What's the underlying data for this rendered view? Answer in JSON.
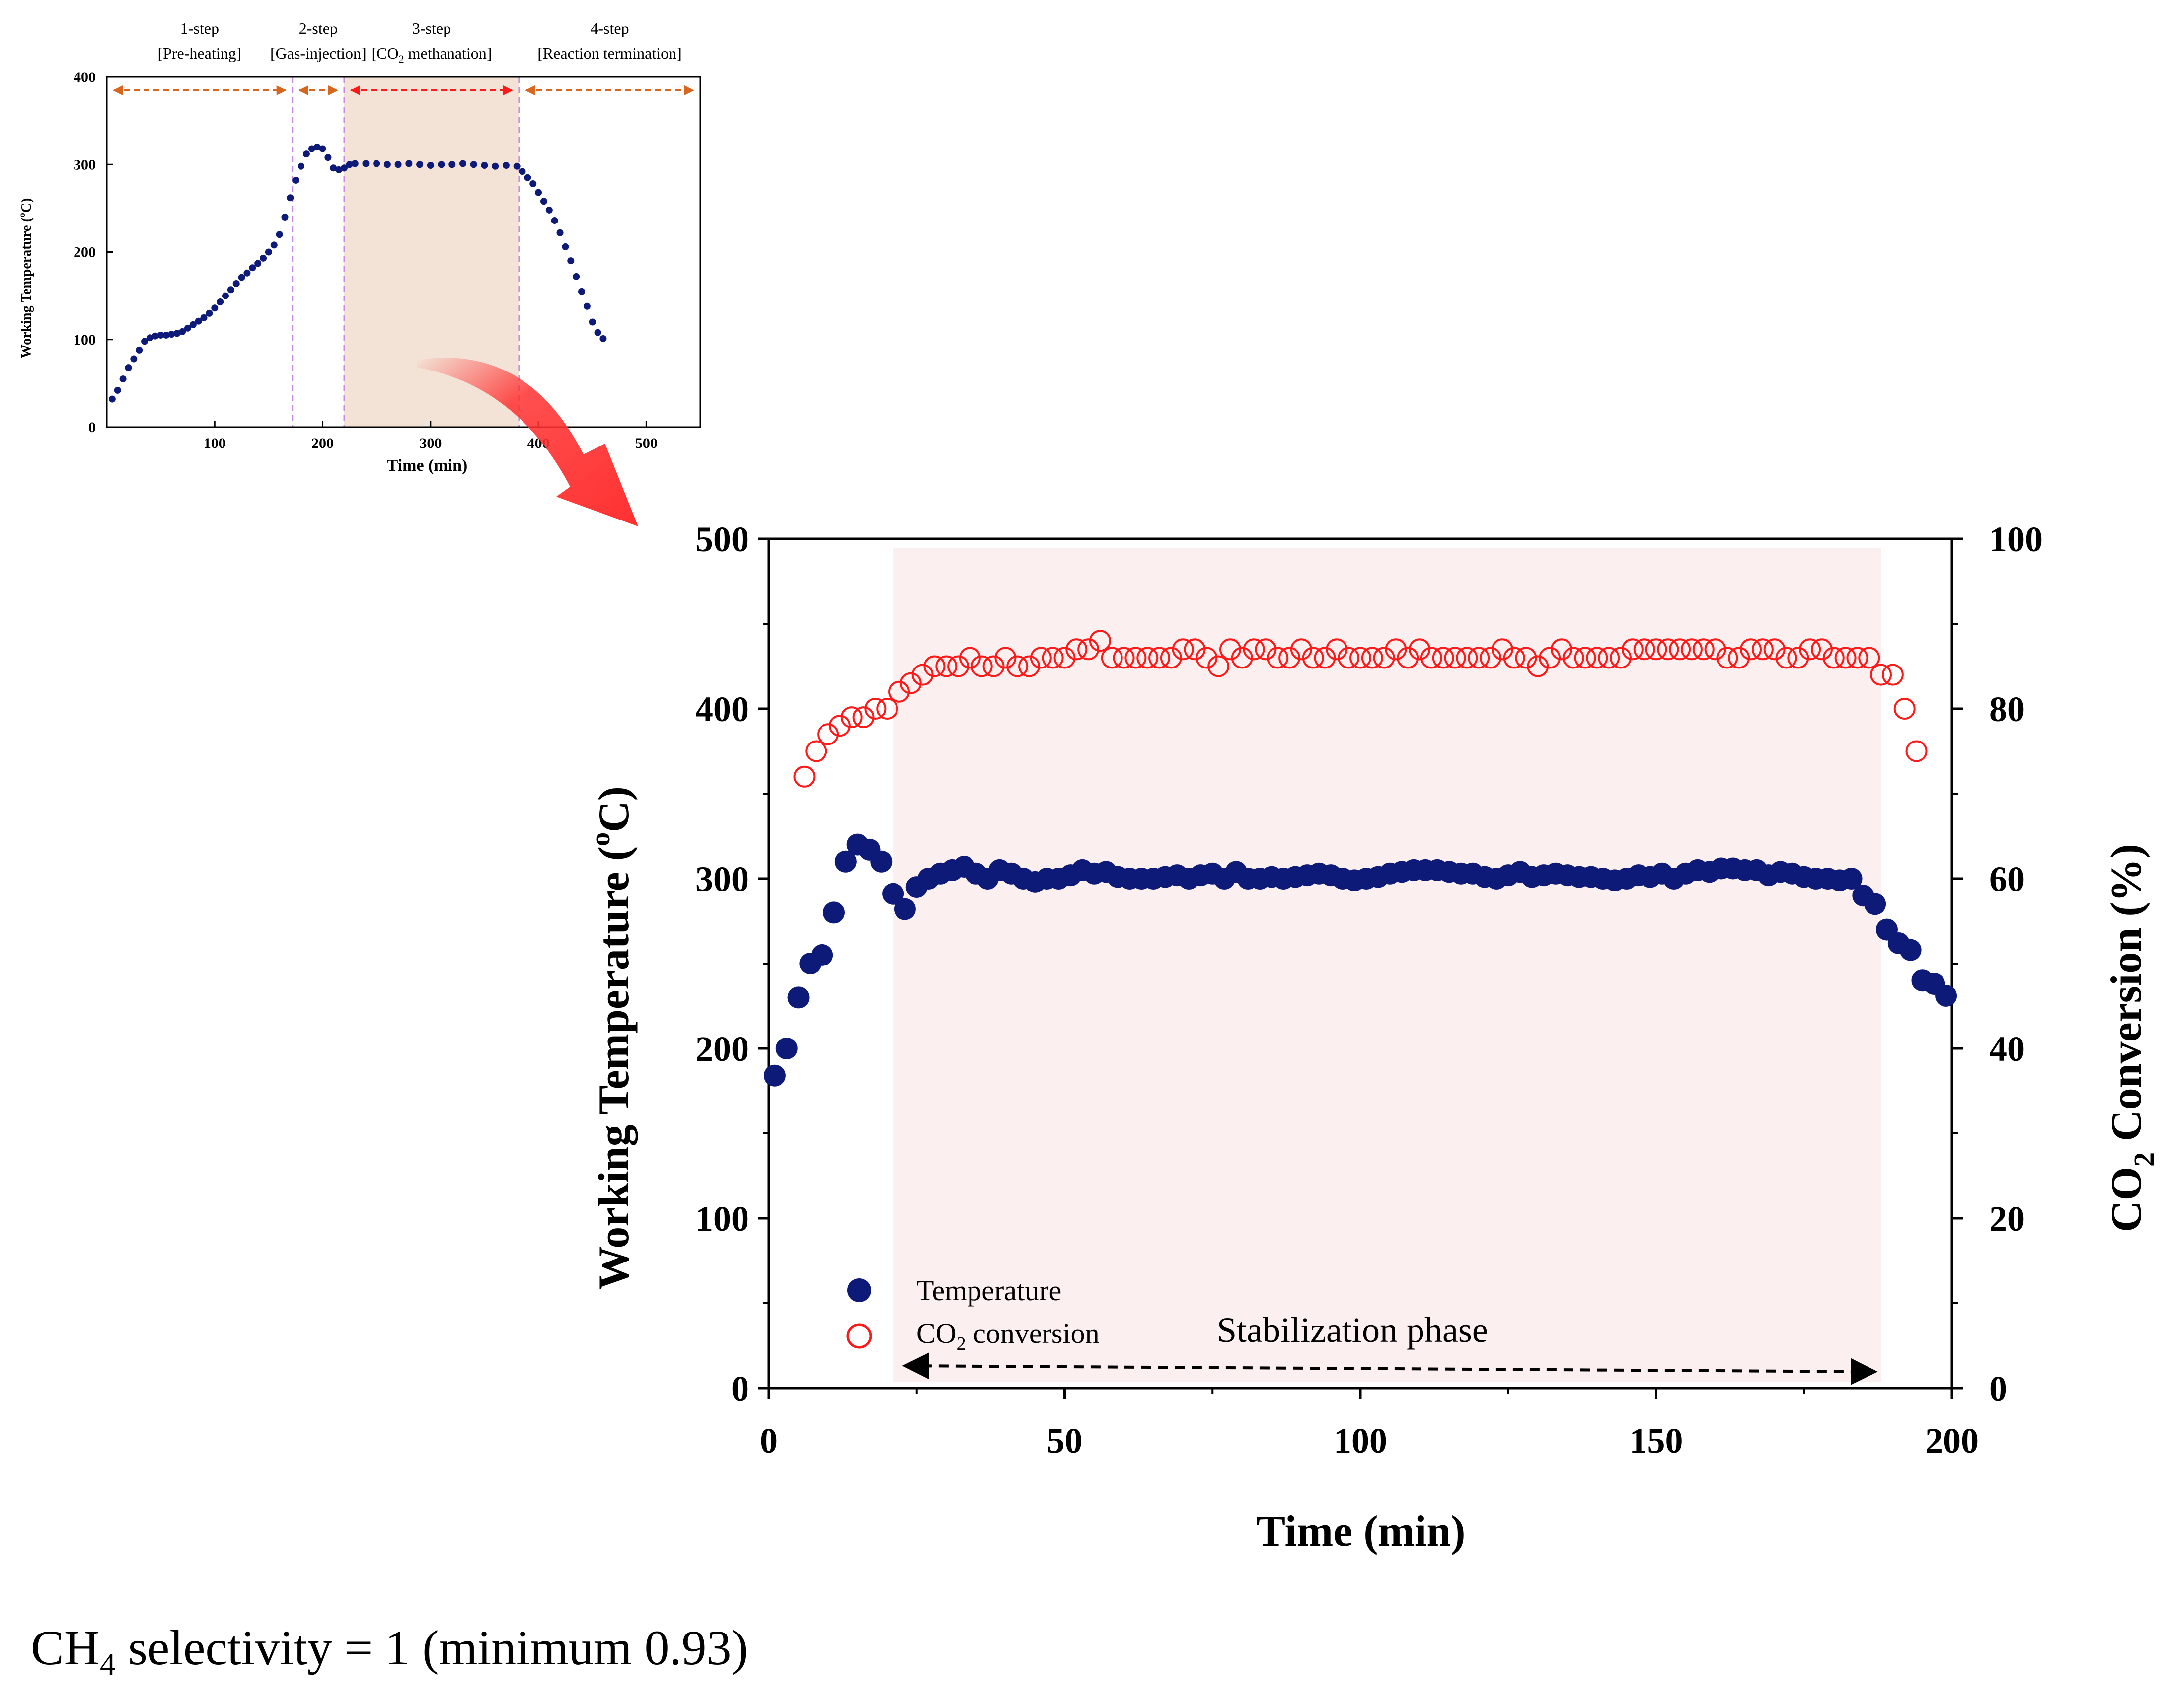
{
  "inset_chart": {
    "type": "scatter",
    "title": "",
    "xlabel": "Time (min)",
    "ylabel_main": "Working Temperature (",
    "ylabel_sup": "o",
    "ylabel_end": "C)",
    "xlim": [
      0,
      550
    ],
    "ylim": [
      0,
      400
    ],
    "x_ticks": [
      "100",
      "200",
      "300",
      "400",
      "500"
    ],
    "y_ticks": [
      "0",
      "100",
      "200",
      "300",
      "400"
    ],
    "steps": [
      {
        "name": "1-step",
        "label": "[Pre-heating]",
        "from": 0,
        "to": 172
      },
      {
        "name": "2-step",
        "label": "[Gas-injection]",
        "from": 172,
        "to": 220
      },
      {
        "name": "3-step",
        "label_pre": "[CO",
        "label_sub": "2",
        "label_post": " methanation]",
        "from": 220,
        "to": 382
      },
      {
        "name": "4-step",
        "label": "[Reaction termination]",
        "from": 382,
        "to": 550
      }
    ],
    "series": [
      {
        "marker": "filled-circle",
        "color": "#0d1a78",
        "points": [
          [
            5,
            32
          ],
          [
            10,
            42
          ],
          [
            15,
            55
          ],
          [
            20,
            68
          ],
          [
            25,
            78
          ],
          [
            30,
            88
          ],
          [
            35,
            98
          ],
          [
            40,
            102
          ],
          [
            45,
            104
          ],
          [
            50,
            105
          ],
          [
            55,
            105
          ],
          [
            60,
            106
          ],
          [
            65,
            107
          ],
          [
            70,
            109
          ],
          [
            75,
            113
          ],
          [
            80,
            117
          ],
          [
            85,
            121
          ],
          [
            90,
            125
          ],
          [
            95,
            130
          ],
          [
            100,
            136
          ],
          [
            105,
            143
          ],
          [
            110,
            150
          ],
          [
            115,
            157
          ],
          [
            120,
            164
          ],
          [
            125,
            171
          ],
          [
            130,
            176
          ],
          [
            135,
            182
          ],
          [
            140,
            187
          ],
          [
            145,
            193
          ],
          [
            150,
            200
          ],
          [
            155,
            208
          ],
          [
            160,
            220
          ],
          [
            165,
            240
          ],
          [
            170,
            262
          ],
          [
            175,
            282
          ],
          [
            180,
            298
          ],
          [
            185,
            312
          ],
          [
            190,
            318
          ],
          [
            195,
            320
          ],
          [
            200,
            318
          ],
          [
            205,
            308
          ],
          [
            210,
            296
          ],
          [
            215,
            294
          ],
          [
            220,
            296
          ],
          [
            225,
            300
          ],
          [
            230,
            301
          ],
          [
            240,
            301
          ],
          [
            250,
            301
          ],
          [
            260,
            300
          ],
          [
            270,
            300
          ],
          [
            280,
            301
          ],
          [
            290,
            300
          ],
          [
            300,
            299
          ],
          [
            310,
            300
          ],
          [
            320,
            300
          ],
          [
            330,
            301
          ],
          [
            340,
            300
          ],
          [
            350,
            299
          ],
          [
            360,
            298
          ],
          [
            370,
            299
          ],
          [
            380,
            298
          ],
          [
            385,
            292
          ],
          [
            390,
            285
          ],
          [
            395,
            278
          ],
          [
            400,
            268
          ],
          [
            405,
            258
          ],
          [
            410,
            248
          ],
          [
            415,
            236
          ],
          [
            420,
            222
          ],
          [
            425,
            206
          ],
          [
            430,
            190
          ],
          [
            435,
            172
          ],
          [
            440,
            155
          ],
          [
            445,
            138
          ],
          [
            450,
            120
          ],
          [
            455,
            108
          ],
          [
            460,
            101
          ]
        ]
      }
    ]
  },
  "chart_data": {
    "type": "scatter",
    "title": "",
    "xlabel": "Time (min)",
    "ylabel_left_main": "Working Temperature (",
    "ylabel_left_sup": "o",
    "ylabel_left_end": "C)",
    "ylabel_right_pre": "CO",
    "ylabel_right_sub": "2",
    "ylabel_right_post": " Conversion (%)",
    "xlim": [
      0,
      200
    ],
    "ylim_left": [
      0,
      500
    ],
    "ylim_right": [
      0,
      100
    ],
    "x_ticks": [
      "0",
      "50",
      "100",
      "150",
      "200"
    ],
    "y_ticks_left": [
      "0",
      "100",
      "200",
      "300",
      "400",
      "500"
    ],
    "y_ticks_right": [
      "0",
      "20",
      "40",
      "60",
      "80",
      "100"
    ],
    "shaded_region": [
      21,
      188
    ],
    "annotation": "Stabilization phase",
    "annotation_arrow": [
      23,
      187
    ],
    "legend_position": "bottom-left",
    "series": [
      {
        "name": "Temperature",
        "axis": "left",
        "marker": "filled-circle",
        "color": "#0d1a78",
        "points": [
          [
            1,
            184
          ],
          [
            3,
            200
          ],
          [
            5,
            230
          ],
          [
            7,
            250
          ],
          [
            9,
            255
          ],
          [
            11,
            280
          ],
          [
            13,
            310
          ],
          [
            15,
            320
          ],
          [
            17,
            317
          ],
          [
            19,
            310
          ],
          [
            21,
            291
          ],
          [
            23,
            282
          ],
          [
            25,
            295
          ],
          [
            27,
            300
          ],
          [
            29,
            303
          ],
          [
            31,
            305
          ],
          [
            33,
            307
          ],
          [
            35,
            303
          ],
          [
            37,
            300
          ],
          [
            39,
            305
          ],
          [
            41,
            303
          ],
          [
            43,
            300
          ],
          [
            45,
            298
          ],
          [
            47,
            300
          ],
          [
            49,
            300
          ],
          [
            51,
            302
          ],
          [
            53,
            305
          ],
          [
            55,
            303
          ],
          [
            57,
            304
          ],
          [
            59,
            301
          ],
          [
            61,
            300
          ],
          [
            63,
            300
          ],
          [
            65,
            300
          ],
          [
            67,
            301
          ],
          [
            69,
            302
          ],
          [
            71,
            300
          ],
          [
            73,
            302
          ],
          [
            75,
            303
          ],
          [
            77,
            300
          ],
          [
            79,
            304
          ],
          [
            81,
            300
          ],
          [
            83,
            300
          ],
          [
            85,
            301
          ],
          [
            87,
            300
          ],
          [
            89,
            301
          ],
          [
            91,
            302
          ],
          [
            93,
            303
          ],
          [
            95,
            302
          ],
          [
            97,
            300
          ],
          [
            99,
            299
          ],
          [
            101,
            300
          ],
          [
            103,
            301
          ],
          [
            105,
            303
          ],
          [
            107,
            304
          ],
          [
            109,
            305
          ],
          [
            111,
            305
          ],
          [
            113,
            305
          ],
          [
            115,
            304
          ],
          [
            117,
            303
          ],
          [
            119,
            303
          ],
          [
            121,
            301
          ],
          [
            123,
            300
          ],
          [
            125,
            302
          ],
          [
            127,
            304
          ],
          [
            129,
            301
          ],
          [
            131,
            302
          ],
          [
            133,
            303
          ],
          [
            135,
            302
          ],
          [
            137,
            301
          ],
          [
            139,
            301
          ],
          [
            141,
            300
          ],
          [
            143,
            299
          ],
          [
            145,
            300
          ],
          [
            147,
            302
          ],
          [
            149,
            301
          ],
          [
            151,
            303
          ],
          [
            153,
            300
          ],
          [
            155,
            303
          ],
          [
            157,
            305
          ],
          [
            159,
            304
          ],
          [
            161,
            306
          ],
          [
            163,
            306
          ],
          [
            165,
            305
          ],
          [
            167,
            305
          ],
          [
            169,
            302
          ],
          [
            171,
            304
          ],
          [
            173,
            303
          ],
          [
            175,
            301
          ],
          [
            177,
            300
          ],
          [
            179,
            300
          ],
          [
            181,
            299
          ],
          [
            183,
            300
          ],
          [
            185,
            290
          ],
          [
            187,
            285
          ],
          [
            189,
            270
          ],
          [
            191,
            262
          ],
          [
            193,
            258
          ],
          [
            195,
            240
          ],
          [
            197,
            238
          ],
          [
            199,
            231
          ]
        ]
      },
      {
        "name_pre": "CO",
        "name_sub": "2",
        "name_post": " conversion",
        "axis": "right",
        "marker": "open-circle",
        "color": "#ff1a1a",
        "points": [
          [
            6,
            72
          ],
          [
            8,
            75
          ],
          [
            10,
            77
          ],
          [
            12,
            78
          ],
          [
            14,
            79
          ],
          [
            16,
            79
          ],
          [
            18,
            80
          ],
          [
            20,
            80
          ],
          [
            22,
            82
          ],
          [
            24,
            83
          ],
          [
            26,
            84
          ],
          [
            28,
            85
          ],
          [
            30,
            85
          ],
          [
            32,
            85
          ],
          [
            34,
            86
          ],
          [
            36,
            85
          ],
          [
            38,
            85
          ],
          [
            40,
            86
          ],
          [
            42,
            85
          ],
          [
            44,
            85
          ],
          [
            46,
            86
          ],
          [
            48,
            86
          ],
          [
            50,
            86
          ],
          [
            52,
            87
          ],
          [
            54,
            87
          ],
          [
            56,
            88
          ],
          [
            58,
            86
          ],
          [
            60,
            86
          ],
          [
            62,
            86
          ],
          [
            64,
            86
          ],
          [
            66,
            86
          ],
          [
            68,
            86
          ],
          [
            70,
            87
          ],
          [
            72,
            87
          ],
          [
            74,
            86
          ],
          [
            76,
            85
          ],
          [
            78,
            87
          ],
          [
            80,
            86
          ],
          [
            82,
            87
          ],
          [
            84,
            87
          ],
          [
            86,
            86
          ],
          [
            88,
            86
          ],
          [
            90,
            87
          ],
          [
            92,
            86
          ],
          [
            94,
            86
          ],
          [
            96,
            87
          ],
          [
            98,
            86
          ],
          [
            100,
            86
          ],
          [
            102,
            86
          ],
          [
            104,
            86
          ],
          [
            106,
            87
          ],
          [
            108,
            86
          ],
          [
            110,
            87
          ],
          [
            112,
            86
          ],
          [
            114,
            86
          ],
          [
            116,
            86
          ],
          [
            118,
            86
          ],
          [
            120,
            86
          ],
          [
            122,
            86
          ],
          [
            124,
            87
          ],
          [
            126,
            86
          ],
          [
            128,
            86
          ],
          [
            130,
            85
          ],
          [
            132,
            86
          ],
          [
            134,
            87
          ],
          [
            136,
            86
          ],
          [
            138,
            86
          ],
          [
            140,
            86
          ],
          [
            142,
            86
          ],
          [
            144,
            86
          ],
          [
            146,
            87
          ],
          [
            148,
            87
          ],
          [
            150,
            87
          ],
          [
            152,
            87
          ],
          [
            154,
            87
          ],
          [
            156,
            87
          ],
          [
            158,
            87
          ],
          [
            160,
            87
          ],
          [
            162,
            86
          ],
          [
            164,
            86
          ],
          [
            166,
            87
          ],
          [
            168,
            87
          ],
          [
            170,
            87
          ],
          [
            172,
            86
          ],
          [
            174,
            86
          ],
          [
            176,
            87
          ],
          [
            178,
            87
          ],
          [
            180,
            86
          ],
          [
            182,
            86
          ],
          [
            184,
            86
          ],
          [
            186,
            86
          ],
          [
            188,
            84
          ],
          [
            190,
            84
          ],
          [
            192,
            80
          ],
          [
            194,
            75
          ]
        ]
      }
    ]
  },
  "arrow_color": "#ff3030",
  "note": {
    "prefix": "CH",
    "sub": "4",
    "suffix": " selectivity = 1 (minimum 0.93)"
  }
}
